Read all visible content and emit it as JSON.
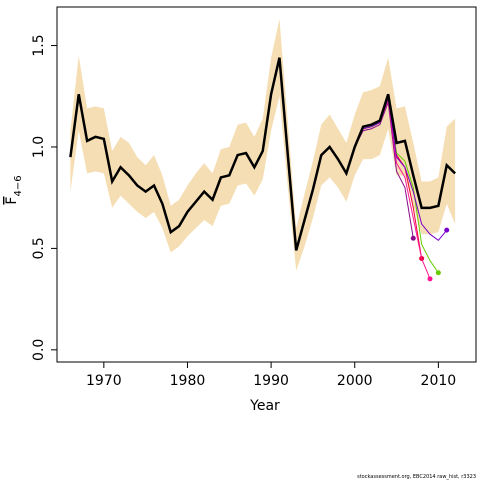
{
  "chart_data": {
    "type": "line",
    "xlabel": "Year",
    "ylabel": "F",
    "ylabel_subscript": "4−6",
    "footnote": "stockassessment.org, EBC2014 raw_hist, r3323",
    "xlim": [
      1964.4,
      2014.5
    ],
    "ylim": [
      -0.06,
      1.69
    ],
    "xticks": [
      1970,
      1980,
      1990,
      2000,
      2010
    ],
    "yticks": [
      {
        "value": 0,
        "label": "0.0"
      },
      0.5,
      {
        "value": 1,
        "label": "1.0"
      },
      1.5
    ],
    "band": {
      "color": "#f5deb3",
      "upper": [
        1.08,
        1.45,
        1.19,
        1.2,
        1.19,
        0.98,
        1.05,
        1.02,
        0.95,
        0.91,
        0.96,
        0.86,
        0.71,
        0.74,
        0.81,
        0.87,
        0.92,
        0.87,
        0.99,
        1.0,
        1.11,
        1.12,
        1.05,
        1.14,
        1.44,
        1.63,
        1.12,
        0.6,
        0.77,
        0.93,
        1.11,
        1.16,
        1.09,
        1.02,
        1.16,
        1.27,
        1.28,
        1.3,
        1.44,
        1.19,
        1.2,
        1.02,
        0.83,
        0.83,
        0.85,
        1.1,
        1.14
      ],
      "lower": [
        0.78,
        1.08,
        0.87,
        0.88,
        0.87,
        0.7,
        0.76,
        0.72,
        0.68,
        0.65,
        0.68,
        0.6,
        0.48,
        0.51,
        0.56,
        0.6,
        0.64,
        0.61,
        0.71,
        0.72,
        0.81,
        0.82,
        0.76,
        0.84,
        1.08,
        1.25,
        0.8,
        0.39,
        0.51,
        0.65,
        0.81,
        0.85,
        0.8,
        0.73,
        0.86,
        0.94,
        0.94,
        0.96,
        1.09,
        0.86,
        0.86,
        0.71,
        0.57,
        0.57,
        0.58,
        0.72,
        0.62
      ]
    },
    "x": [
      1966,
      1967,
      1968,
      1969,
      1970,
      1971,
      1972,
      1973,
      1974,
      1975,
      1976,
      1977,
      1978,
      1979,
      1980,
      1981,
      1982,
      1983,
      1984,
      1985,
      1986,
      1987,
      1988,
      1989,
      1990,
      1991,
      1992,
      1993,
      1994,
      1995,
      1996,
      1997,
      1998,
      1999,
      2000,
      2001,
      2002,
      2003,
      2004,
      2005,
      2006,
      2007,
      2008,
      2009,
      2010,
      2011,
      2012
    ],
    "values": [
      0.95,
      1.26,
      1.03,
      1.05,
      1.04,
      0.83,
      0.9,
      0.86,
      0.81,
      0.78,
      0.81,
      0.72,
      0.58,
      0.61,
      0.68,
      0.73,
      0.78,
      0.74,
      0.85,
      0.86,
      0.96,
      0.97,
      0.9,
      0.98,
      1.26,
      1.44,
      0.96,
      0.49,
      0.64,
      0.79,
      0.96,
      1.0,
      0.94,
      0.87,
      1.0,
      1.1,
      1.11,
      1.13,
      1.26,
      1.02,
      1.03,
      0.86,
      0.7,
      0.7,
      0.71,
      0.91,
      0.87
    ],
    "color": "#000000",
    "series": [
      {
        "color": "#8b0a8b",
        "x": [
          2000,
          2001,
          2002,
          2003,
          2004,
          2005,
          2006,
          2007
        ],
        "values": [
          1.0,
          1.08,
          1.09,
          1.11,
          1.22,
          0.88,
          0.8,
          0.55
        ]
      },
      {
        "color": "#ee0033",
        "x": [
          2000,
          2001,
          2002,
          2003,
          2004,
          2005,
          2006,
          2007,
          2008
        ],
        "values": [
          1.0,
          1.09,
          1.1,
          1.12,
          1.24,
          0.96,
          0.9,
          0.7,
          0.45
        ]
      },
      {
        "color": "#ff1493",
        "x": [
          2000,
          2001,
          2002,
          2003,
          2004,
          2005,
          2006,
          2007,
          2008,
          2009
        ],
        "values": [
          1.0,
          1.09,
          1.1,
          1.12,
          1.23,
          0.92,
          0.85,
          0.65,
          0.45,
          0.35
        ]
      },
      {
        "color": "#66cc00",
        "x": [
          2000,
          2001,
          2002,
          2003,
          2004,
          2005,
          2006,
          2007,
          2008,
          2009,
          2010
        ],
        "values": [
          1.0,
          1.09,
          1.1,
          1.12,
          1.24,
          0.97,
          0.93,
          0.8,
          0.52,
          0.44,
          0.38
        ]
      },
      {
        "color": "#7a00cc",
        "x": [
          2000,
          2001,
          2002,
          2003,
          2004,
          2005,
          2006,
          2007,
          2008,
          2009,
          2010,
          2011
        ],
        "values": [
          1.0,
          1.09,
          1.1,
          1.12,
          1.24,
          0.95,
          0.9,
          0.78,
          0.62,
          0.57,
          0.54,
          0.59
        ]
      }
    ]
  }
}
